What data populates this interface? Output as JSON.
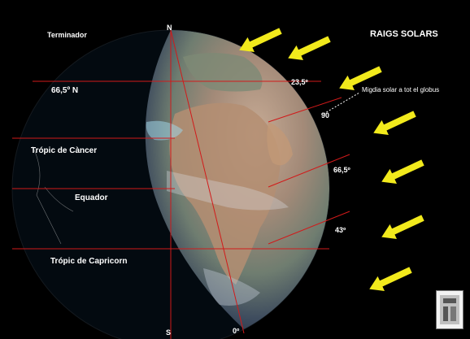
{
  "title": "RAIGS SOLARS",
  "labels": {
    "terminator": "Terminador",
    "north": "N",
    "lat66": "66,5º N",
    "cancer": "Trópic de Càncer",
    "equator": "Equador",
    "capricorn": "Trópic de Capricorn",
    "south": "S"
  },
  "angles": {
    "a235": "23,5º",
    "a90": "90",
    "a665": "66,5º",
    "a43": "43º",
    "a0": "0º"
  },
  "annotation": "Migdia solar a tot el globus",
  "sun_ray_count": 7,
  "colors": {
    "background": "#000000",
    "ray": "#f2ea1c",
    "grid_line": "#d11a1a",
    "text": "#ffffff"
  },
  "logo": "logo-icon"
}
